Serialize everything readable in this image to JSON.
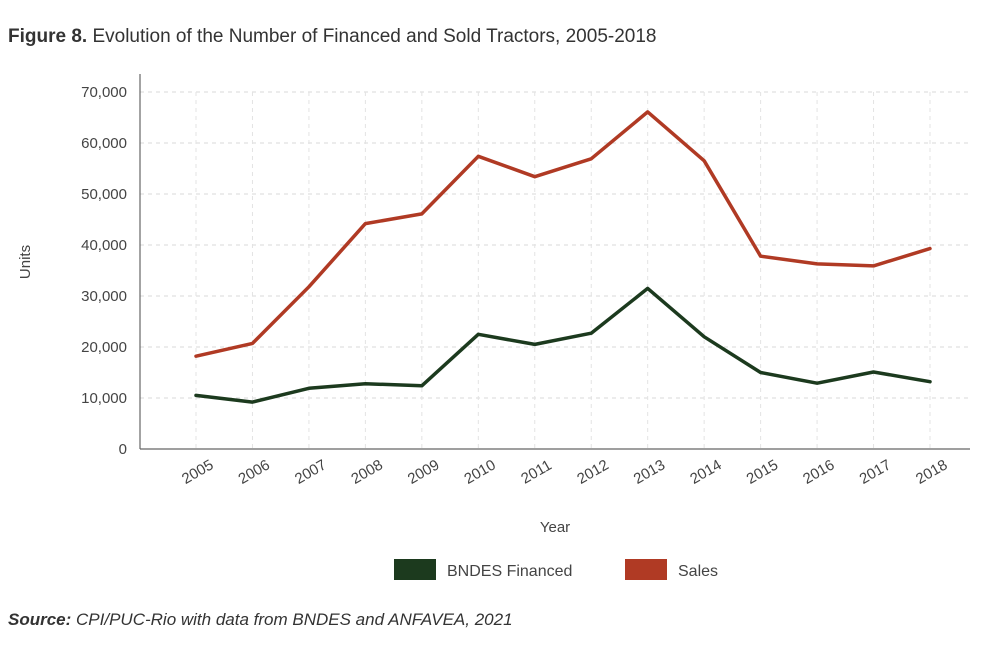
{
  "figure": {
    "label": "Figure 8.",
    "title": "Evolution of the Number of Financed and Sold Tractors, 2005-2018"
  },
  "source": {
    "label": "Source:",
    "text": "CPI/PUC-Rio with data from BNDES and ANFAVEA, 2021"
  },
  "chart_data": {
    "type": "line",
    "xlabel": "Year",
    "ylabel": "Units",
    "x": [
      "2005",
      "2006",
      "2007",
      "2008",
      "2009",
      "2010",
      "2011",
      "2012",
      "2013",
      "2014",
      "2015",
      "2016",
      "2017",
      "2018"
    ],
    "ylim": [
      0,
      70000
    ],
    "yticks": [
      0,
      10000,
      20000,
      30000,
      40000,
      50000,
      60000,
      70000
    ],
    "ytick_labels": [
      "0",
      "10,000",
      "20,000",
      "30,000",
      "40,000",
      "50,000",
      "60,000",
      "70,000"
    ],
    "grid": true,
    "legend_position": "bottom",
    "series": [
      {
        "name": "BNDES Financed",
        "color": "#1c3a1e",
        "values": [
          10500,
          9200,
          11900,
          12800,
          12400,
          22500,
          20500,
          22700,
          31500,
          22000,
          15000,
          12900,
          15100,
          13200
        ]
      },
      {
        "name": "Sales",
        "color": "#b03a24",
        "values": [
          18200,
          20700,
          31800,
          44200,
          46100,
          57400,
          53400,
          56900,
          66100,
          56500,
          37800,
          36300,
          35900,
          39300
        ]
      }
    ]
  }
}
